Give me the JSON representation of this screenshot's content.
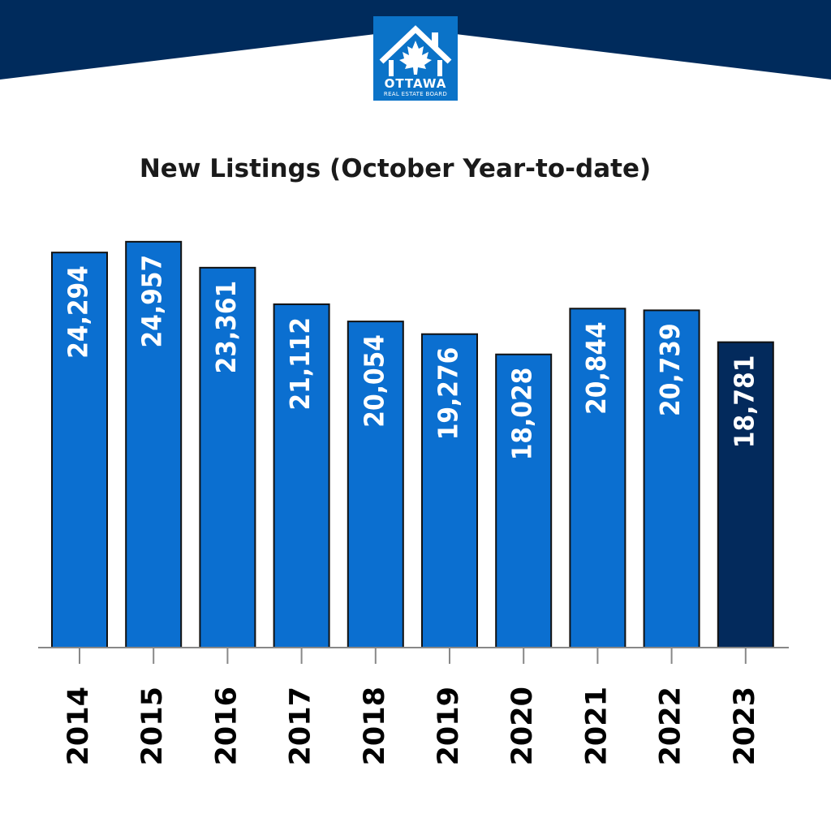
{
  "branding": {
    "header_color": "#002b5c",
    "logo_bg": "#0b73c8",
    "logo_line1": "OTTAWA",
    "logo_line2": "REAL ESTATE BOARD",
    "logo_icon": "house-maple-leaf-icon"
  },
  "chart_data": {
    "type": "bar",
    "title": "New Listings (October Year-to-date)",
    "xlabel": "",
    "ylabel": "",
    "categories": [
      "2014",
      "2015",
      "2016",
      "2017",
      "2018",
      "2019",
      "2020",
      "2021",
      "2022",
      "2023"
    ],
    "values": [
      24294,
      24957,
      23361,
      21112,
      20054,
      19276,
      18028,
      20844,
      20739,
      18781
    ],
    "value_labels": [
      "24,294",
      "24,957",
      "23,361",
      "21,112",
      "20,054",
      "19,276",
      "18,028",
      "20,844",
      "20,739",
      "18,781"
    ],
    "ylim": [
      0,
      25000
    ],
    "grid": false,
    "bar_color": "#0b6fd0",
    "highlight_color": "#032a5c",
    "highlight_index": 9
  }
}
